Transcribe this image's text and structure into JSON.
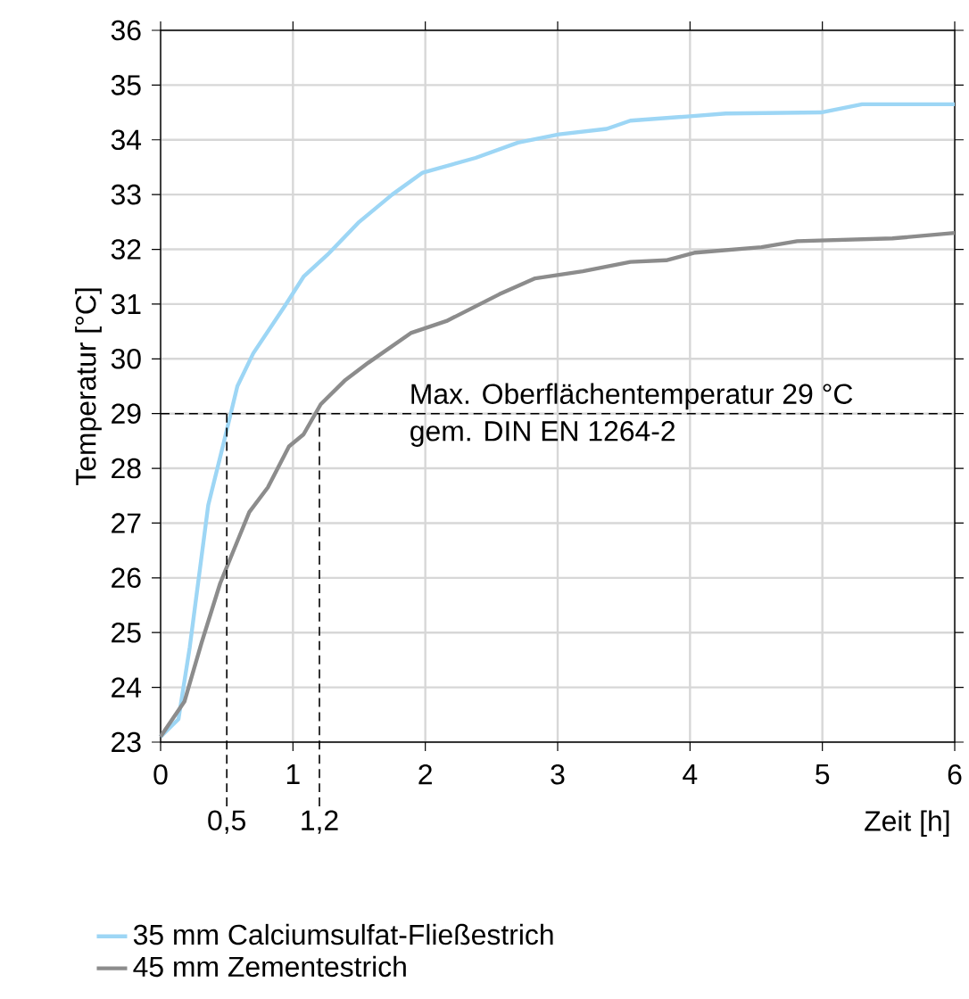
{
  "chart_data": {
    "type": "line",
    "xlabel": "Zeit [h]",
    "ylabel": "Temperatur [°C]",
    "xlim": [
      0,
      6
    ],
    "ylim": [
      23,
      36
    ],
    "xticks": [
      0,
      1,
      2,
      3,
      4,
      5,
      6
    ],
    "yticks": [
      23,
      24,
      25,
      26,
      27,
      28,
      29,
      30,
      31,
      32,
      33,
      34,
      35,
      36
    ],
    "grid": true,
    "legend": "bottom",
    "series": [
      {
        "name": "35 mm Calciumsulfat-Fließestrich",
        "color": "#9dd6f5",
        "x": [
          0,
          0.135,
          0.22,
          0.36,
          0.47,
          0.58,
          0.7,
          0.94,
          1.08,
          1.26,
          1.5,
          1.75,
          1.98,
          2.38,
          2.7,
          3.01,
          3.37,
          3.55,
          4.0,
          4.27,
          4.99,
          5.3,
          6.0
        ],
        "values": [
          23.1,
          23.42,
          24.73,
          27.33,
          28.4,
          29.5,
          30.1,
          30.97,
          31.5,
          31.9,
          32.5,
          33.0,
          33.4,
          33.67,
          33.95,
          34.1,
          34.2,
          34.35,
          34.43,
          34.48,
          34.5,
          34.65,
          34.65
        ]
      },
      {
        "name": "45 mm Zementestrich",
        "color": "#8c8c8c",
        "x": [
          0,
          0.18,
          0.31,
          0.45,
          0.58,
          0.67,
          0.81,
          0.97,
          1.08,
          1.21,
          1.39,
          1.57,
          1.89,
          2.16,
          2.56,
          2.83,
          3.19,
          3.55,
          3.82,
          4.04,
          4.54,
          4.81,
          5.53,
          6.0
        ],
        "values": [
          23.1,
          23.74,
          24.82,
          25.9,
          26.67,
          27.2,
          27.65,
          28.4,
          28.62,
          29.17,
          29.6,
          29.93,
          30.47,
          30.69,
          31.18,
          31.47,
          31.6,
          31.77,
          31.8,
          31.94,
          32.04,
          32.15,
          32.2,
          32.3
        ]
      }
    ],
    "ref_lines": [
      {
        "axis": "y",
        "value": 29,
        "label": "Max. Oberflächentemperatur 29 °C",
        "color": "#000000",
        "line_style": "dashed"
      },
      {
        "axis": "x",
        "value": 0.5,
        "label": "0,5",
        "color": "#000000",
        "line_style": "dashed"
      },
      {
        "axis": "x",
        "value": 1.2,
        "label": "1,2",
        "color": "#000000",
        "line_style": "dashed"
      }
    ],
    "annotations": [
      "gem. DIN EN 1264-2"
    ]
  }
}
